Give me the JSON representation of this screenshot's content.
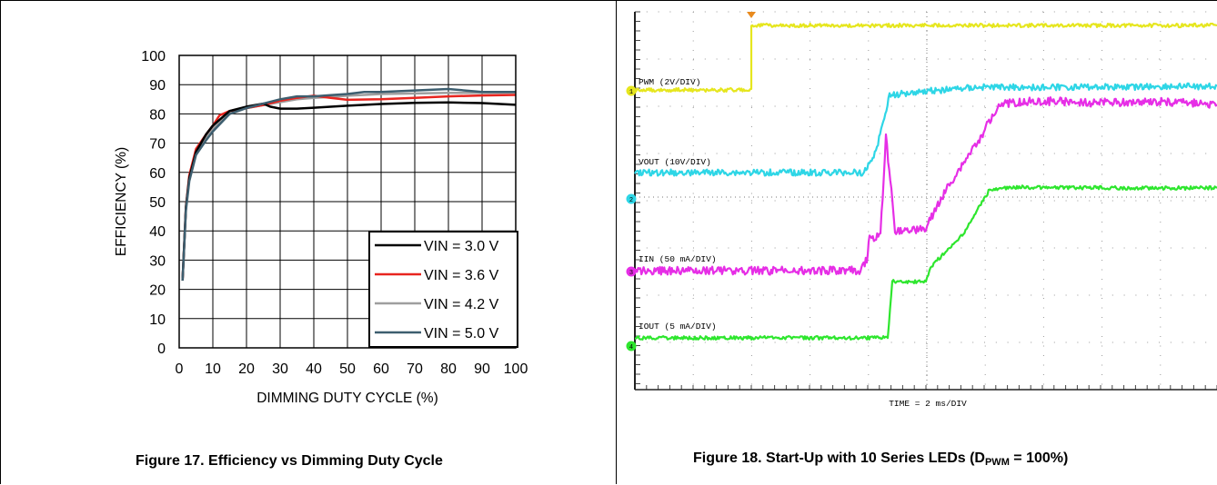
{
  "figure17": {
    "caption": "Figure 17. Efficiency vs Dimming Duty Cycle",
    "chart_data": {
      "type": "line",
      "xlabel": "DIMMING DUTY CYCLE (%)",
      "ylabel": "EFFICIENCY (%)",
      "xlim": [
        0,
        100
      ],
      "ylim": [
        0,
        100
      ],
      "xticks": [
        0,
        10,
        20,
        30,
        40,
        50,
        60,
        70,
        80,
        90,
        100
      ],
      "yticks": [
        0,
        10,
        20,
        30,
        40,
        50,
        60,
        70,
        80,
        90,
        100
      ],
      "grid": true,
      "legend_position": "bottom-right",
      "series": [
        {
          "name": "VIN = 3.0 V",
          "color": "#000000",
          "x": [
            1,
            2,
            3,
            5,
            8,
            10,
            15,
            20,
            25,
            27,
            30,
            35,
            40,
            50,
            60,
            70,
            80,
            90,
            100
          ],
          "y": [
            23,
            48,
            58,
            67,
            73,
            76,
            81,
            82.5,
            83.5,
            82.5,
            81.8,
            81.8,
            82.1,
            82.8,
            83.4,
            83.8,
            83.9,
            83.7,
            83.1
          ]
        },
        {
          "name": "VIN = 3.6 V",
          "color": "#e8251f",
          "x": [
            1,
            2,
            3,
            5,
            8,
            10,
            12,
            15,
            20,
            25,
            30,
            35,
            40,
            45,
            50,
            60,
            70,
            80,
            90,
            100
          ],
          "y": [
            23,
            48,
            59,
            68,
            73,
            76,
            79.5,
            81,
            82,
            83,
            84.5,
            85.5,
            86.2,
            85.5,
            84.8,
            85,
            85.5,
            86,
            86.3,
            86.5
          ]
        },
        {
          "name": "VIN = 4.2 V",
          "color": "#9e9e9e",
          "x": [
            1,
            2,
            3,
            5,
            8,
            10,
            15,
            20,
            25,
            30,
            35,
            40,
            45,
            50,
            55,
            60,
            70,
            80,
            90,
            100
          ],
          "y": [
            23,
            48,
            58,
            67,
            72,
            75,
            80,
            82,
            83,
            84,
            85,
            85.5,
            85.8,
            86.2,
            86.5,
            86.8,
            87,
            87.2,
            87.2,
            87.3
          ]
        },
        {
          "name": "VIN = 5.0 V",
          "color": "#3d5e6f",
          "x": [
            1,
            2,
            3,
            5,
            8,
            10,
            15,
            20,
            25,
            30,
            35,
            40,
            45,
            50,
            55,
            60,
            70,
            80,
            90,
            100
          ],
          "y": [
            23,
            47,
            57,
            66,
            71,
            74,
            80,
            82,
            83.5,
            85,
            86,
            86,
            86.4,
            86.8,
            87.5,
            87.5,
            88,
            88.5,
            87.5,
            87.5
          ]
        }
      ]
    }
  },
  "figure18": {
    "caption_main": "Figure 18. Start-Up with 10 Series LEDs (D",
    "caption_sub": "PWM",
    "caption_end": " = 100%)",
    "chart_data": {
      "type": "line",
      "xlabel": "TIME = 2 ms/DIV",
      "series": [
        {
          "name": "PWM (2V/DIV)",
          "channel": "1",
          "color": "#e6e61e"
        },
        {
          "name": "VOUT (10V/DIV)",
          "channel": "2",
          "color": "#2ed6e6"
        },
        {
          "name": "IIN (50 mA/DIV)",
          "channel": "3",
          "color": "#e62ee6"
        },
        {
          "name": "IOUT (5 mA/DIV)",
          "channel": "4",
          "color": "#2ee62e"
        }
      ]
    }
  }
}
